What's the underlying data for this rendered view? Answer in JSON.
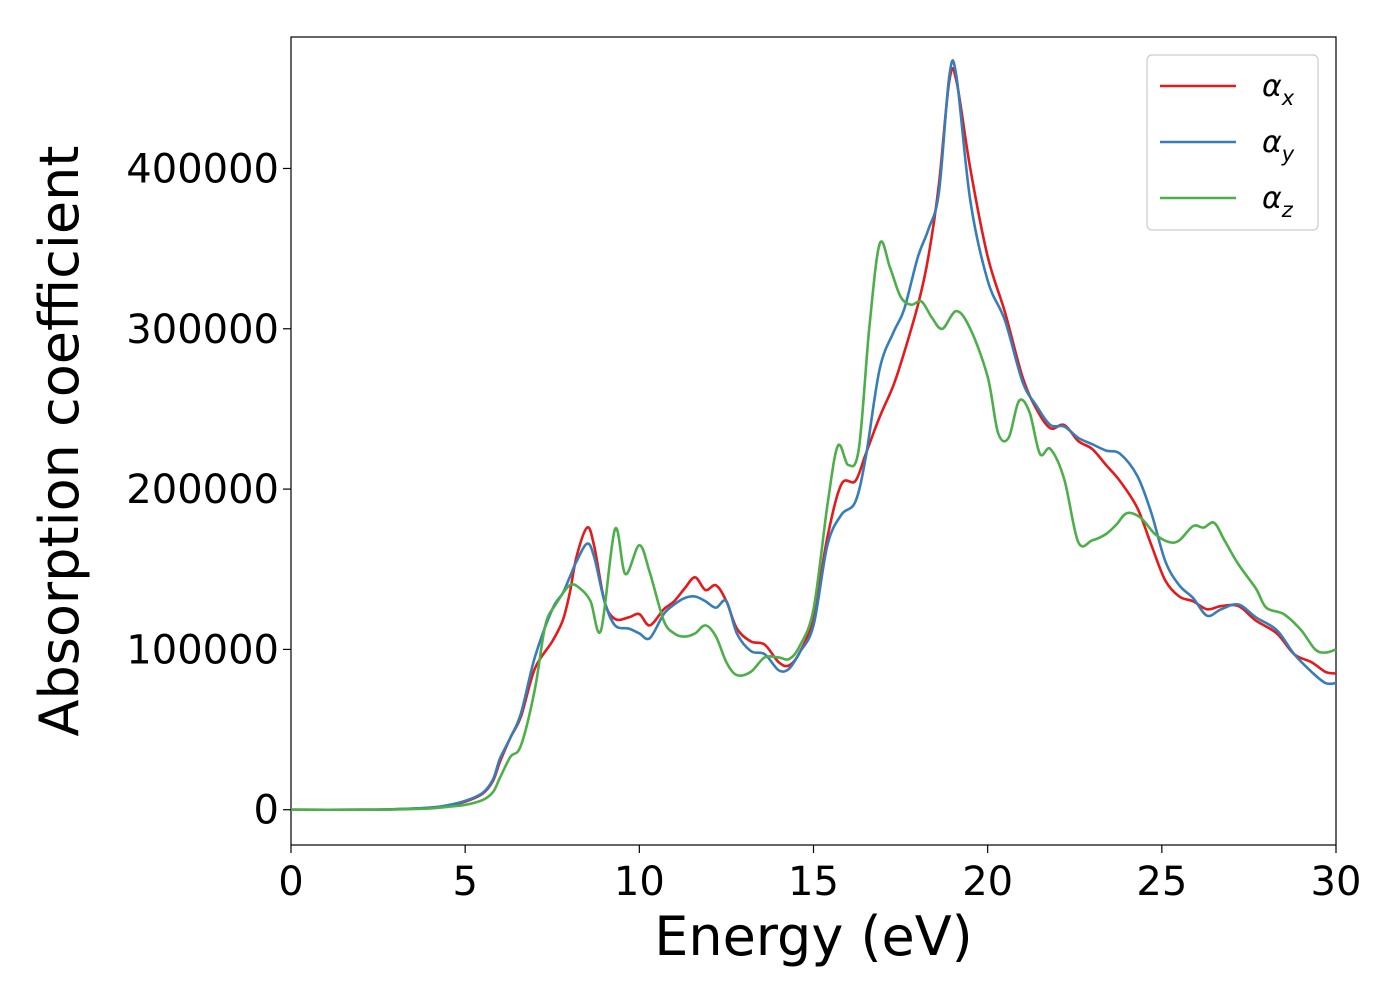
{
  "chart_data": {
    "type": "line",
    "title": "",
    "xlabel": "Energy (eV)",
    "ylabel": "Absorption coefficient",
    "xlim": [
      0,
      30
    ],
    "ylim": [
      -22000,
      482000
    ],
    "xticks": [
      0,
      5,
      10,
      15,
      20,
      25,
      30
    ],
    "yticks": [
      0,
      100000,
      200000,
      300000,
      400000
    ],
    "grid": false,
    "legend_position": "top-right",
    "series": [
      {
        "name": "α",
        "subscript": "x",
        "color": "#e41a1c",
        "points": [
          [
            0,
            0
          ],
          [
            2,
            0
          ],
          [
            3,
            300
          ],
          [
            4,
            1200
          ],
          [
            4.5,
            2500
          ],
          [
            5,
            5000
          ],
          [
            5.5,
            10000
          ],
          [
            5.8,
            18000
          ],
          [
            6,
            30000
          ],
          [
            6.3,
            45000
          ],
          [
            6.6,
            58000
          ],
          [
            7,
            88000
          ],
          [
            7.5,
            105000
          ],
          [
            7.8,
            118000
          ],
          [
            8,
            135000
          ],
          [
            8.2,
            158000
          ],
          [
            8.5,
            176000
          ],
          [
            8.7,
            165000
          ],
          [
            9,
            130000
          ],
          [
            9.3,
            119000
          ],
          [
            9.7,
            120000
          ],
          [
            10,
            122000
          ],
          [
            10.3,
            115000
          ],
          [
            10.7,
            125000
          ],
          [
            11,
            130000
          ],
          [
            11.3,
            138000
          ],
          [
            11.6,
            145000
          ],
          [
            11.9,
            137000
          ],
          [
            12.2,
            140000
          ],
          [
            12.5,
            130000
          ],
          [
            12.8,
            113000
          ],
          [
            13.2,
            105000
          ],
          [
            13.6,
            103000
          ],
          [
            14,
            92000
          ],
          [
            14.3,
            90000
          ],
          [
            14.6,
            98000
          ],
          [
            15,
            120000
          ],
          [
            15.4,
            170000
          ],
          [
            15.8,
            203000
          ],
          [
            16.2,
            205000
          ],
          [
            16.5,
            222000
          ],
          [
            16.9,
            245000
          ],
          [
            17.3,
            265000
          ],
          [
            17.6,
            285000
          ],
          [
            18,
            315000
          ],
          [
            18.3,
            345000
          ],
          [
            18.6,
            390000
          ],
          [
            18.9,
            455000
          ],
          [
            19.1,
            455000
          ],
          [
            19.5,
            400000
          ],
          [
            20,
            345000
          ],
          [
            20.5,
            310000
          ],
          [
            21,
            270000
          ],
          [
            21.4,
            250000
          ],
          [
            21.8,
            238000
          ],
          [
            22.2,
            240000
          ],
          [
            22.6,
            230000
          ],
          [
            23,
            225000
          ],
          [
            23.4,
            215000
          ],
          [
            23.8,
            205000
          ],
          [
            24.3,
            188000
          ],
          [
            24.7,
            165000
          ],
          [
            25.1,
            143000
          ],
          [
            25.5,
            133000
          ],
          [
            25.9,
            130000
          ],
          [
            26.3,
            125000
          ],
          [
            26.7,
            127000
          ],
          [
            27.2,
            127000
          ],
          [
            27.7,
            118000
          ],
          [
            28.3,
            110000
          ],
          [
            28.8,
            97000
          ],
          [
            29.3,
            92000
          ],
          [
            29.7,
            86000
          ],
          [
            30,
            85000
          ]
        ]
      },
      {
        "name": "α",
        "subscript": "y",
        "color": "#377eb8",
        "points": [
          [
            0,
            0
          ],
          [
            2,
            0
          ],
          [
            3,
            300
          ],
          [
            4,
            1300
          ],
          [
            4.5,
            2800
          ],
          [
            5,
            5500
          ],
          [
            5.5,
            10500
          ],
          [
            5.8,
            19000
          ],
          [
            6,
            32000
          ],
          [
            6.3,
            45000
          ],
          [
            6.6,
            60000
          ],
          [
            7,
            95000
          ],
          [
            7.5,
            125000
          ],
          [
            7.8,
            135000
          ],
          [
            8,
            145000
          ],
          [
            8.2,
            155000
          ],
          [
            8.5,
            166000
          ],
          [
            8.7,
            158000
          ],
          [
            9,
            130000
          ],
          [
            9.3,
            115000
          ],
          [
            9.7,
            113000
          ],
          [
            10,
            110000
          ],
          [
            10.3,
            107000
          ],
          [
            10.7,
            122000
          ],
          [
            11,
            128000
          ],
          [
            11.3,
            132000
          ],
          [
            11.6,
            133000
          ],
          [
            11.9,
            130000
          ],
          [
            12.2,
            126000
          ],
          [
            12.5,
            130000
          ],
          [
            12.8,
            110000
          ],
          [
            13.2,
            99000
          ],
          [
            13.6,
            97000
          ],
          [
            14,
            87000
          ],
          [
            14.3,
            88000
          ],
          [
            14.6,
            98000
          ],
          [
            15,
            115000
          ],
          [
            15.4,
            165000
          ],
          [
            15.8,
            184000
          ],
          [
            16.2,
            192000
          ],
          [
            16.5,
            220000
          ],
          [
            16.9,
            275000
          ],
          [
            17.3,
            298000
          ],
          [
            17.6,
            312000
          ],
          [
            18,
            345000
          ],
          [
            18.3,
            362000
          ],
          [
            18.6,
            385000
          ],
          [
            18.9,
            458000
          ],
          [
            19.1,
            458000
          ],
          [
            19.5,
            380000
          ],
          [
            20,
            330000
          ],
          [
            20.5,
            305000
          ],
          [
            21,
            267000
          ],
          [
            21.4,
            252000
          ],
          [
            21.8,
            240000
          ],
          [
            22.2,
            239000
          ],
          [
            22.6,
            232000
          ],
          [
            23,
            228000
          ],
          [
            23.4,
            224000
          ],
          [
            23.8,
            222000
          ],
          [
            24.3,
            208000
          ],
          [
            24.7,
            185000
          ],
          [
            25.1,
            155000
          ],
          [
            25.5,
            140000
          ],
          [
            25.9,
            132000
          ],
          [
            26.3,
            121000
          ],
          [
            26.7,
            125000
          ],
          [
            27.2,
            128000
          ],
          [
            27.7,
            120000
          ],
          [
            28.3,
            112000
          ],
          [
            28.8,
            97000
          ],
          [
            29.3,
            86000
          ],
          [
            29.7,
            79000
          ],
          [
            30,
            79000
          ]
        ]
      },
      {
        "name": "α",
        "subscript": "z",
        "color": "#4daf4a",
        "points": [
          [
            0,
            0
          ],
          [
            2,
            0
          ],
          [
            3,
            200
          ],
          [
            4,
            800
          ],
          [
            4.5,
            1800
          ],
          [
            5,
            3000
          ],
          [
            5.5,
            6000
          ],
          [
            5.8,
            11000
          ],
          [
            6,
            20000
          ],
          [
            6.3,
            33000
          ],
          [
            6.6,
            40000
          ],
          [
            7,
            75000
          ],
          [
            7.3,
            115000
          ],
          [
            7.6,
            128000
          ],
          [
            8,
            140000
          ],
          [
            8.3,
            138000
          ],
          [
            8.6,
            130000
          ],
          [
            8.9,
            112000
          ],
          [
            9.3,
            175000
          ],
          [
            9.6,
            147000
          ],
          [
            10,
            165000
          ],
          [
            10.3,
            148000
          ],
          [
            10.7,
            118000
          ],
          [
            11,
            110000
          ],
          [
            11.3,
            108000
          ],
          [
            11.6,
            110000
          ],
          [
            11.9,
            115000
          ],
          [
            12.2,
            108000
          ],
          [
            12.5,
            92000
          ],
          [
            12.8,
            84000
          ],
          [
            13.2,
            86000
          ],
          [
            13.6,
            95000
          ],
          [
            14,
            95000
          ],
          [
            14.3,
            94000
          ],
          [
            14.6,
            102000
          ],
          [
            15,
            125000
          ],
          [
            15.4,
            190000
          ],
          [
            15.7,
            227000
          ],
          [
            16,
            215000
          ],
          [
            16.3,
            225000
          ],
          [
            16.6,
            300000
          ],
          [
            16.9,
            353000
          ],
          [
            17.2,
            338000
          ],
          [
            17.5,
            320000
          ],
          [
            17.8,
            315000
          ],
          [
            18.1,
            317000
          ],
          [
            18.4,
            307000
          ],
          [
            18.7,
            300000
          ],
          [
            19.1,
            311000
          ],
          [
            19.5,
            300000
          ],
          [
            20,
            270000
          ],
          [
            20.3,
            235000
          ],
          [
            20.6,
            232000
          ],
          [
            20.9,
            255000
          ],
          [
            21.2,
            248000
          ],
          [
            21.5,
            222000
          ],
          [
            21.8,
            225000
          ],
          [
            22.2,
            206000
          ],
          [
            22.6,
            167000
          ],
          [
            23,
            168000
          ],
          [
            23.4,
            172000
          ],
          [
            23.7,
            178000
          ],
          [
            24,
            185000
          ],
          [
            24.4,
            182000
          ],
          [
            24.8,
            172000
          ],
          [
            25.2,
            167000
          ],
          [
            25.5,
            168000
          ],
          [
            25.9,
            177000
          ],
          [
            26.2,
            176000
          ],
          [
            26.5,
            179000
          ],
          [
            26.8,
            168000
          ],
          [
            27.2,
            153000
          ],
          [
            27.7,
            138000
          ],
          [
            28,
            126000
          ],
          [
            28.5,
            122000
          ],
          [
            29,
            112000
          ],
          [
            29.4,
            100000
          ],
          [
            29.7,
            98000
          ],
          [
            30,
            100000
          ]
        ]
      }
    ]
  }
}
